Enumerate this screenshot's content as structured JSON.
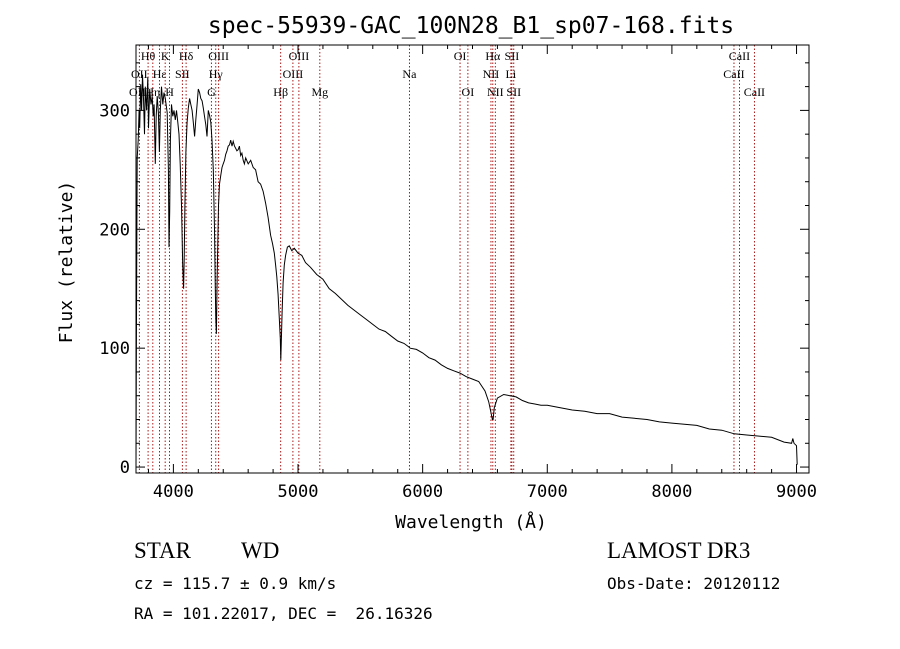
{
  "chart_data": {
    "type": "line",
    "title": "spec-55939-GAC_100N28_B1_sp07-168.fits",
    "xlabel": "Wavelength (Å)",
    "ylabel": "Flux (relative)",
    "xlim": [
      3700,
      9100
    ],
    "ylim": [
      -5,
      355
    ],
    "xticks": [
      4000,
      5000,
      6000,
      7000,
      8000,
      9000
    ],
    "yticks": [
      0,
      100,
      200,
      300
    ],
    "series": [
      {
        "name": "flux",
        "points": [
          [
            3700,
            0
          ],
          [
            3704,
            125
          ],
          [
            3710,
            260
          ],
          [
            3718,
            275
          ],
          [
            3725,
            300
          ],
          [
            3730,
            285
          ],
          [
            3738,
            322
          ],
          [
            3745,
            300
          ],
          [
            3752,
            330
          ],
          [
            3760,
            310
          ],
          [
            3768,
            280
          ],
          [
            3775,
            320
          ],
          [
            3785,
            300
          ],
          [
            3795,
            328
          ],
          [
            3800,
            285
          ],
          [
            3810,
            318
          ],
          [
            3820,
            305
          ],
          [
            3830,
            312
          ],
          [
            3838,
            295
          ],
          [
            3845,
            305
          ],
          [
            3855,
            255
          ],
          [
            3862,
            295
          ],
          [
            3870,
            312
          ],
          [
            3880,
            298
          ],
          [
            3888,
            265
          ],
          [
            3895,
            300
          ],
          [
            3905,
            320
          ],
          [
            3915,
            305
          ],
          [
            3925,
            315
          ],
          [
            3935,
            310
          ],
          [
            3950,
            298
          ],
          [
            3960,
            250
          ],
          [
            3965,
            185
          ],
          [
            3970,
            215
          ],
          [
            3976,
            275
          ],
          [
            3985,
            305
          ],
          [
            3995,
            295
          ],
          [
            4005,
            300
          ],
          [
            4015,
            292
          ],
          [
            4025,
            300
          ],
          [
            4035,
            290
          ],
          [
            4045,
            280
          ],
          [
            4055,
            255
          ],
          [
            4065,
            220
          ],
          [
            4075,
            170
          ],
          [
            4082,
            150
          ],
          [
            4087,
            175
          ],
          [
            4092,
            220
          ],
          [
            4100,
            265
          ],
          [
            4110,
            290
          ],
          [
            4120,
            302
          ],
          [
            4130,
            310
          ],
          [
            4140,
            305
          ],
          [
            4150,
            300
          ],
          [
            4160,
            290
          ],
          [
            4170,
            278
          ],
          [
            4180,
            292
          ],
          [
            4190,
            305
          ],
          [
            4200,
            318
          ],
          [
            4210,
            315
          ],
          [
            4220,
            310
          ],
          [
            4230,
            308
          ],
          [
            4240,
            302
          ],
          [
            4250,
            295
          ],
          [
            4260,
            288
          ],
          [
            4270,
            278
          ],
          [
            4280,
            300
          ],
          [
            4290,
            296
          ],
          [
            4300,
            290
          ],
          [
            4310,
            275
          ],
          [
            4320,
            250
          ],
          [
            4330,
            200
          ],
          [
            4336,
            150
          ],
          [
            4340,
            125
          ],
          [
            4345,
            112
          ],
          [
            4350,
            150
          ],
          [
            4355,
            180
          ],
          [
            4362,
            220
          ],
          [
            4370,
            238
          ],
          [
            4380,
            245
          ],
          [
            4390,
            252
          ],
          [
            4400,
            255
          ],
          [
            4410,
            258
          ],
          [
            4420,
            263
          ],
          [
            4430,
            266
          ],
          [
            4440,
            270
          ],
          [
            4450,
            271
          ],
          [
            4460,
            275
          ],
          [
            4470,
            270
          ],
          [
            4480,
            274
          ],
          [
            4490,
            270
          ],
          [
            4500,
            268
          ],
          [
            4510,
            266
          ],
          [
            4520,
            267
          ],
          [
            4530,
            270
          ],
          [
            4540,
            262
          ],
          [
            4550,
            264
          ],
          [
            4560,
            258
          ],
          [
            4570,
            255
          ],
          [
            4580,
            260
          ],
          [
            4600,
            255
          ],
          [
            4620,
            258
          ],
          [
            4640,
            252
          ],
          [
            4660,
            250
          ],
          [
            4680,
            240
          ],
          [
            4700,
            238
          ],
          [
            4720,
            232
          ],
          [
            4740,
            222
          ],
          [
            4760,
            210
          ],
          [
            4780,
            195
          ],
          [
            4795,
            188
          ],
          [
            4810,
            180
          ],
          [
            4820,
            170
          ],
          [
            4830,
            160
          ],
          [
            4840,
            145
          ],
          [
            4850,
            125
          ],
          [
            4858,
            108
          ],
          [
            4862,
            90
          ],
          [
            4866,
            105
          ],
          [
            4872,
            130
          ],
          [
            4880,
            155
          ],
          [
            4890,
            170
          ],
          [
            4900,
            178
          ],
          [
            4915,
            185
          ],
          [
            4930,
            186
          ],
          [
            4950,
            182
          ],
          [
            4970,
            184
          ],
          [
            5000,
            180
          ],
          [
            5030,
            178
          ],
          [
            5060,
            172
          ],
          [
            5100,
            168
          ],
          [
            5150,
            162
          ],
          [
            5200,
            158
          ],
          [
            5250,
            150
          ],
          [
            5300,
            146
          ],
          [
            5350,
            141
          ],
          [
            5400,
            136
          ],
          [
            5450,
            132
          ],
          [
            5500,
            128
          ],
          [
            5550,
            124
          ],
          [
            5600,
            120
          ],
          [
            5650,
            116
          ],
          [
            5700,
            114
          ],
          [
            5750,
            110
          ],
          [
            5800,
            106
          ],
          [
            5850,
            104
          ],
          [
            5890,
            101
          ],
          [
            5900,
            100
          ],
          [
            5950,
            99
          ],
          [
            6000,
            96
          ],
          [
            6050,
            92
          ],
          [
            6100,
            90
          ],
          [
            6150,
            86
          ],
          [
            6200,
            83
          ],
          [
            6250,
            81
          ],
          [
            6300,
            79
          ],
          [
            6350,
            76
          ],
          [
            6400,
            74
          ],
          [
            6450,
            72
          ],
          [
            6500,
            64
          ],
          [
            6530,
            55
          ],
          [
            6550,
            45
          ],
          [
            6560,
            40
          ],
          [
            6565,
            40
          ],
          [
            6575,
            50
          ],
          [
            6600,
            58
          ],
          [
            6650,
            61
          ],
          [
            6700,
            60
          ],
          [
            6750,
            59
          ],
          [
            6800,
            56
          ],
          [
            6850,
            54
          ],
          [
            6900,
            53
          ],
          [
            6950,
            52
          ],
          [
            7000,
            52
          ],
          [
            7100,
            50
          ],
          [
            7200,
            48
          ],
          [
            7300,
            47
          ],
          [
            7400,
            45
          ],
          [
            7500,
            45
          ],
          [
            7600,
            42
          ],
          [
            7700,
            41
          ],
          [
            7800,
            40
          ],
          [
            7900,
            38
          ],
          [
            8000,
            37
          ],
          [
            8100,
            36
          ],
          [
            8200,
            35
          ],
          [
            8300,
            32
          ],
          [
            8400,
            31
          ],
          [
            8500,
            28
          ],
          [
            8600,
            27
          ],
          [
            8700,
            26
          ],
          [
            8800,
            25
          ],
          [
            8900,
            21
          ],
          [
            8960,
            20
          ],
          [
            8970,
            24
          ],
          [
            8980,
            20
          ],
          [
            9000,
            18
          ],
          [
            9005,
            2
          ]
        ]
      }
    ],
    "lines": [
      {
        "label": "Hθ",
        "wavelength": 3797,
        "row": 1
      },
      {
        "label": "OII",
        "wavelength": 3727,
        "row": 2
      },
      {
        "label": "OIII",
        "wavelength": 3727,
        "row": 3
      },
      {
        "label": "Hη",
        "wavelength": 3835,
        "row": 3
      },
      {
        "label": "K",
        "wavelength": 3934,
        "row": 1
      },
      {
        "label": "Hε",
        "wavelength": 3889,
        "row": 2
      },
      {
        "label": "H",
        "wavelength": 3969,
        "row": 3
      },
      {
        "label": "Hδ",
        "wavelength": 4102,
        "row": 1
      },
      {
        "label": "SII",
        "wavelength": 4072,
        "row": 2
      },
      {
        "label": "OIII",
        "wavelength": 4363,
        "row": 1
      },
      {
        "label": "Hγ",
        "wavelength": 4340,
        "row": 2
      },
      {
        "label": "G",
        "wavelength": 4305,
        "row": 3
      },
      {
        "label": "Hβ",
        "wavelength": 4861,
        "row": 3
      },
      {
        "label": "OIII",
        "wavelength": 5007,
        "row": 1
      },
      {
        "label": "OIII",
        "wavelength": 4959,
        "row": 2
      },
      {
        "label": "Mg",
        "wavelength": 5175,
        "row": 3
      },
      {
        "label": "Na",
        "wavelength": 5894,
        "row": 2
      },
      {
        "label": "OI",
        "wavelength": 6300,
        "row": 1
      },
      {
        "label": "OI",
        "wavelength": 6363,
        "row": 3
      },
      {
        "label": "Hα",
        "wavelength": 6563,
        "row": 1
      },
      {
        "label": "NII",
        "wavelength": 6548,
        "row": 2
      },
      {
        "label": "NII",
        "wavelength": 6583,
        "row": 3
      },
      {
        "label": "SII",
        "wavelength": 6716,
        "row": 1
      },
      {
        "label": "Li",
        "wavelength": 6708,
        "row": 2
      },
      {
        "label": "SII",
        "wavelength": 6731,
        "row": 3
      },
      {
        "label": "CaII",
        "wavelength": 8542,
        "row": 1
      },
      {
        "label": "CaII",
        "wavelength": 8498,
        "row": 2
      },
      {
        "label": "CaII",
        "wavelength": 8662,
        "row": 3
      }
    ],
    "colors": {
      "axis": "#000000",
      "series": "#000000",
      "line_markers": "#a00000"
    }
  },
  "info": {
    "object_class": "STAR",
    "subclass": "WD",
    "survey": "LAMOST DR3",
    "cz": "cz = 115.7 ± 0.9 km/s",
    "obs_date": "Obs-Date: 20120112",
    "coords": "RA = 101.22017, DEC =  26.16326"
  }
}
